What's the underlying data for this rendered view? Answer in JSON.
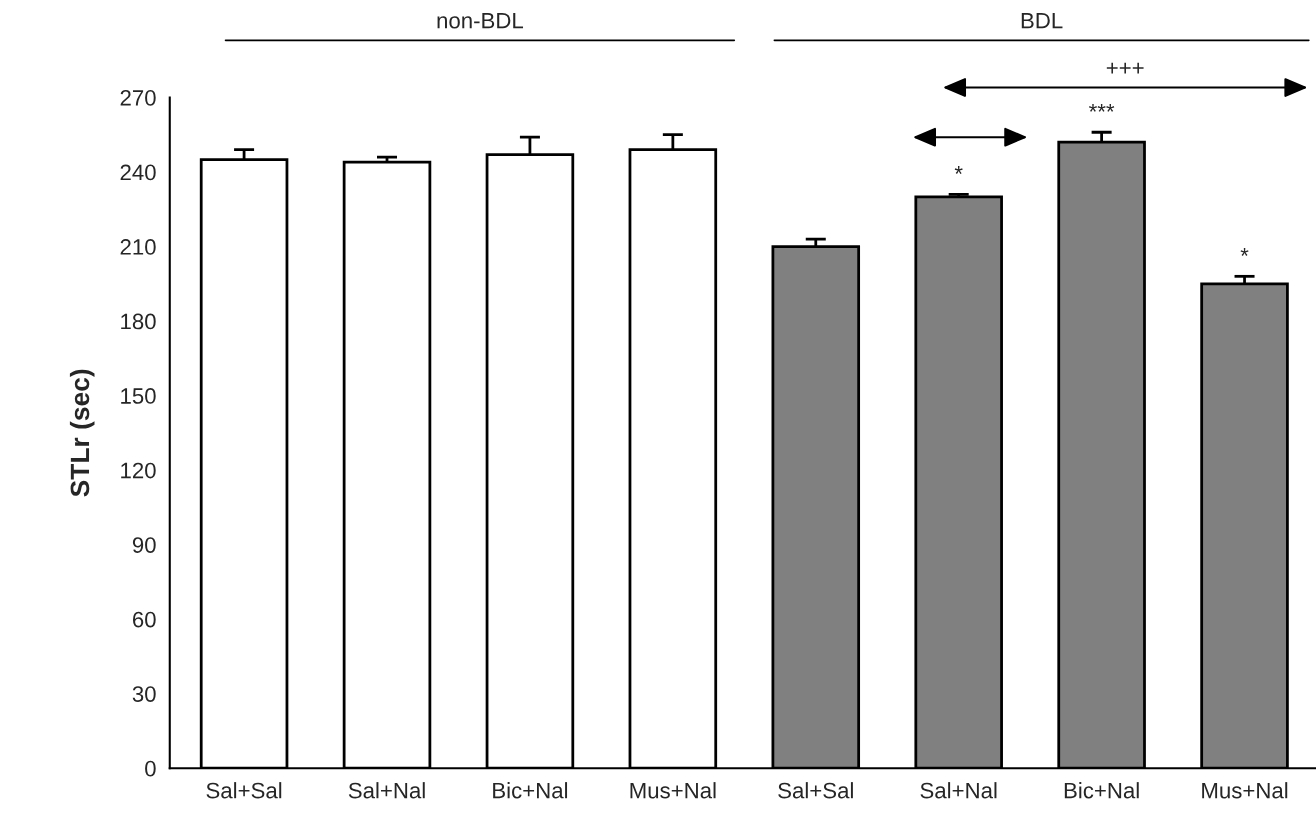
{
  "chart_data": {
    "type": "bar",
    "categories": [
      "Sal+Sal",
      "Sal+Nal",
      "Bic+Nal",
      "Mus+Nal",
      "Sal+Sal",
      "Sal+Nal",
      "Bic+Nal",
      "Mus+Nal"
    ],
    "values": [
      245,
      244,
      247,
      249,
      210,
      230,
      252,
      195
    ],
    "errors": [
      [
        245,
        249
      ],
      [
        244,
        246
      ],
      [
        247,
        254
      ],
      [
        249,
        255
      ],
      [
        210,
        213
      ],
      [
        230,
        231
      ],
      [
        252,
        256
      ],
      [
        195,
        198
      ]
    ],
    "colors": [
      "#ffffff",
      "#ffffff",
      "#ffffff",
      "#ffffff",
      "#808080",
      "#808080",
      "#808080",
      "#808080"
    ],
    "value_labels": [
      null,
      null,
      null,
      null,
      null,
      "*",
      "***",
      "*"
    ],
    "ylabel": "STLr (sec)",
    "ylim": [
      0,
      270
    ],
    "yticks": [
      0,
      30,
      60,
      90,
      120,
      150,
      180,
      210,
      240,
      270
    ],
    "annotations": [
      "non-BDL",
      "BDL",
      "+++"
    ],
    "grid": false,
    "legend": false
  }
}
